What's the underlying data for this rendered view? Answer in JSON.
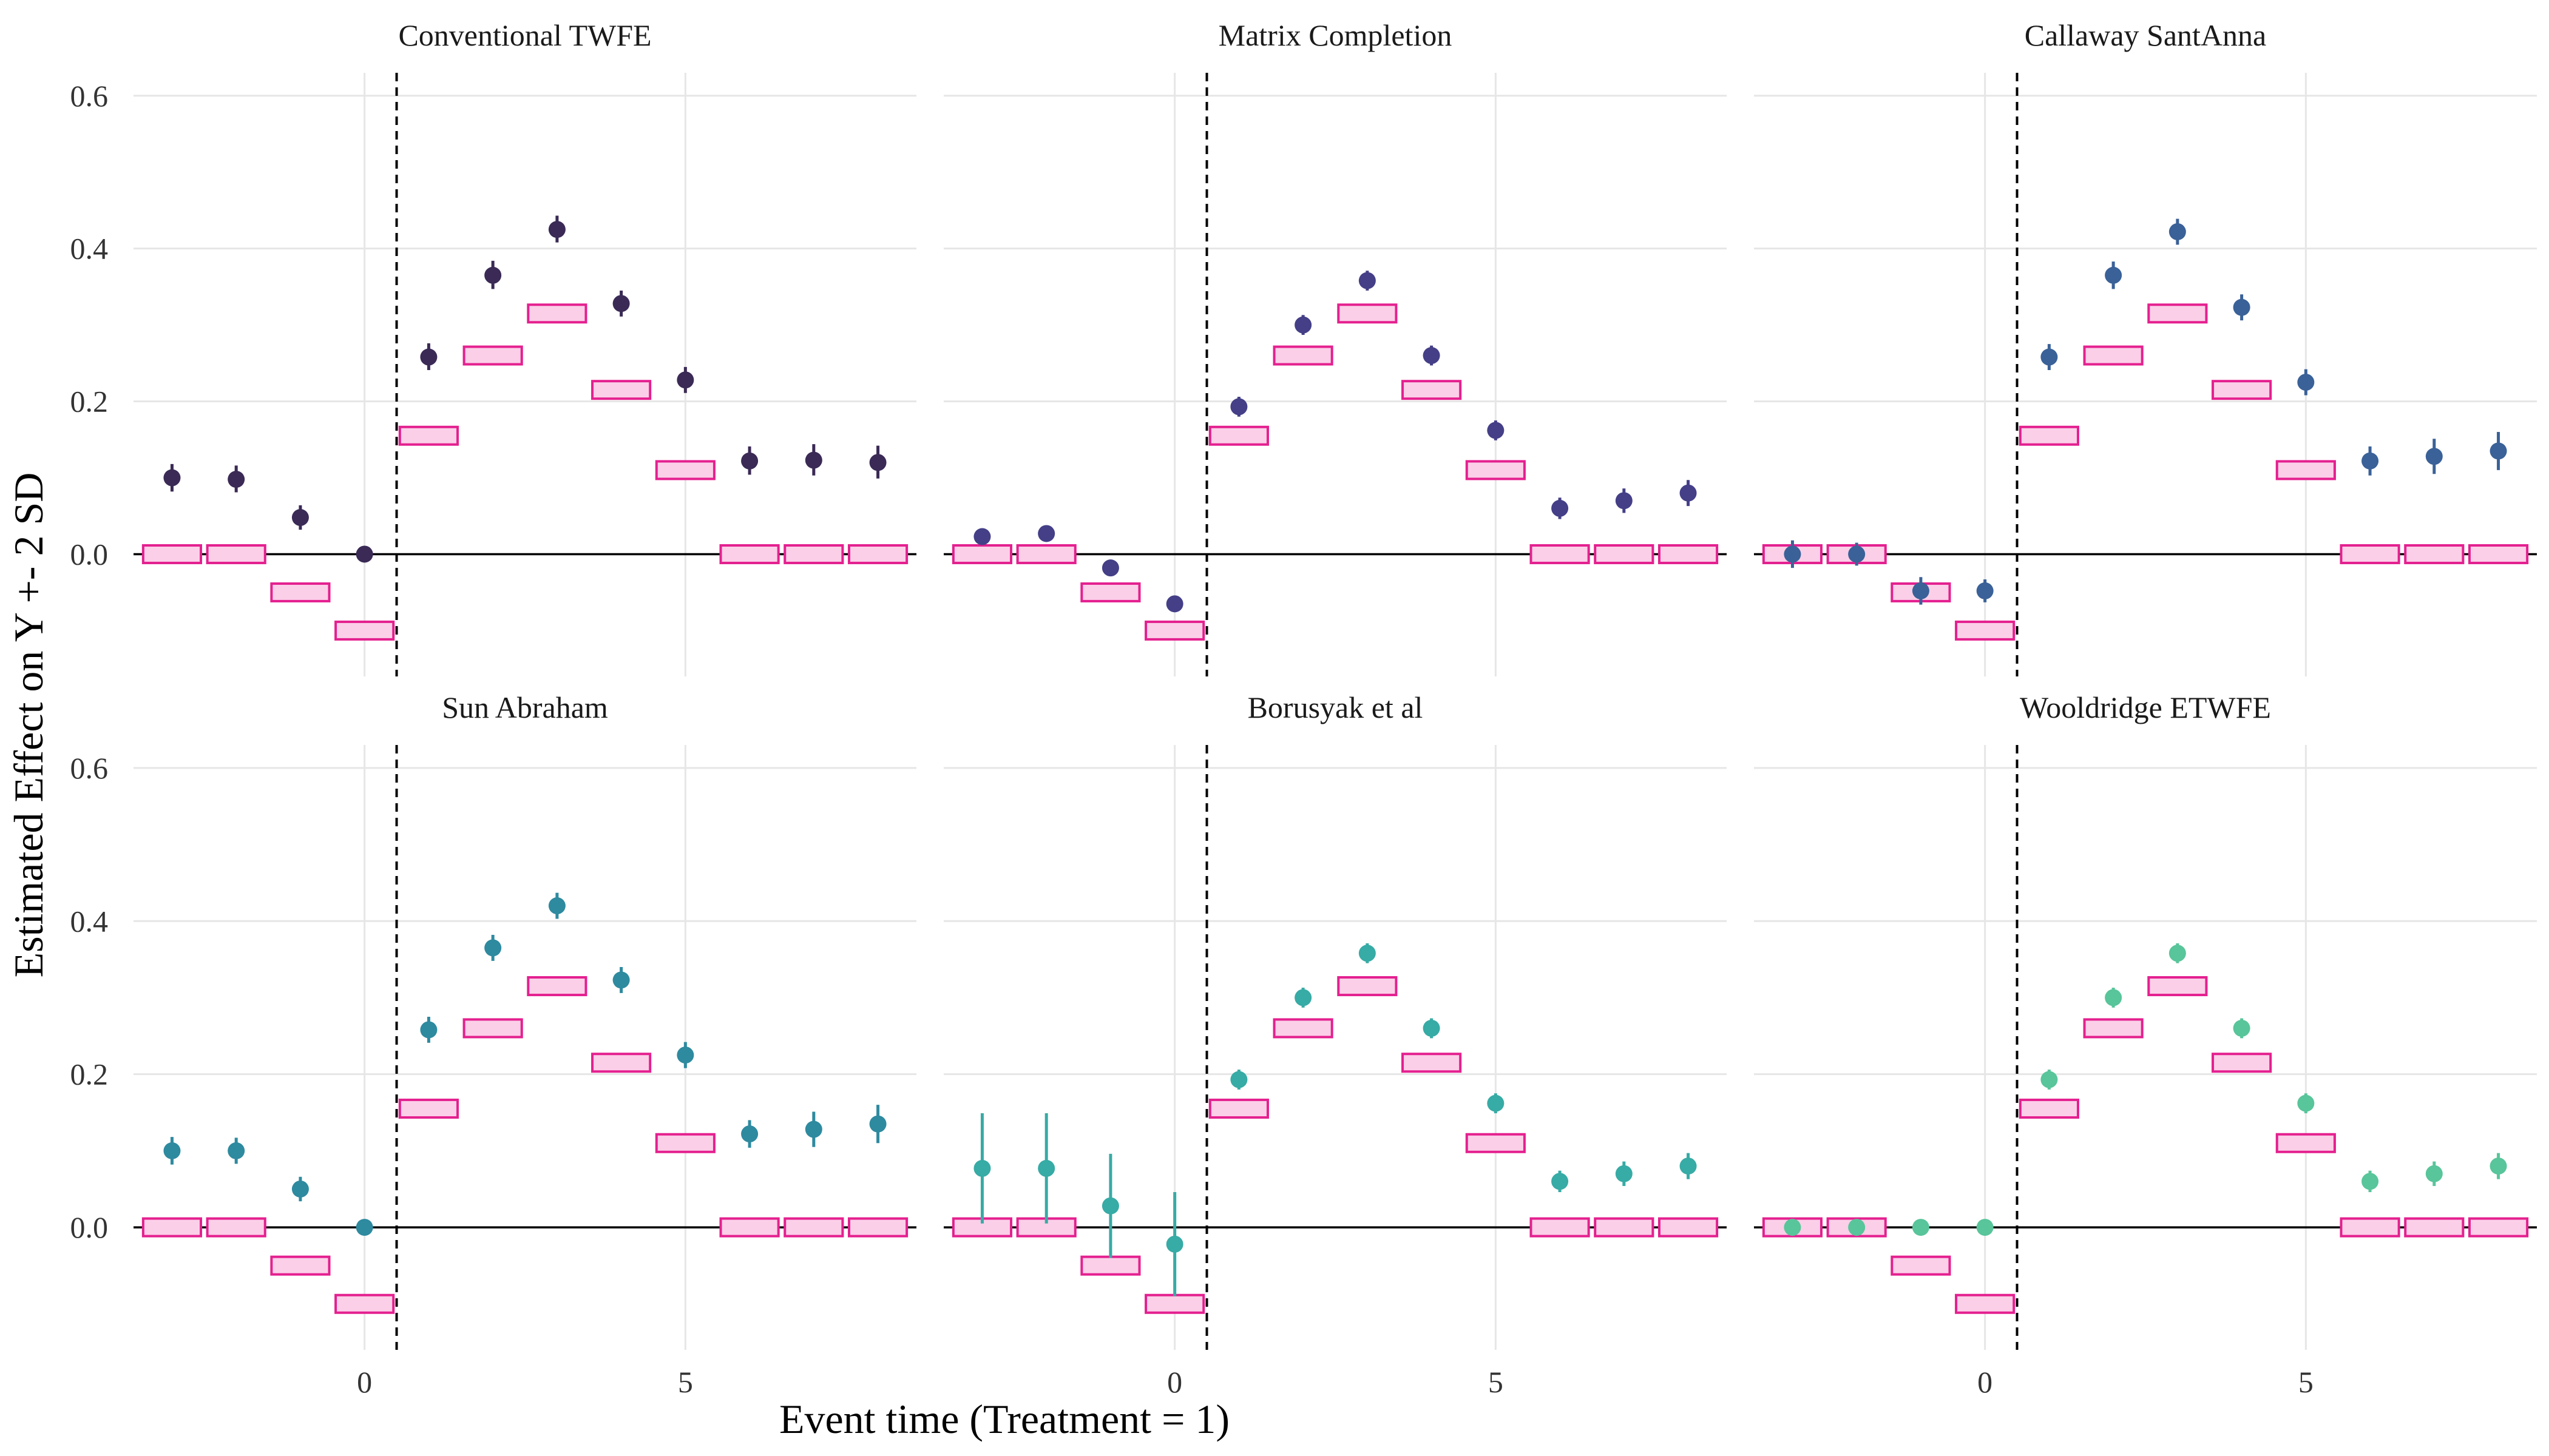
{
  "chart_data": {
    "type": "scatter",
    "xlabel": "Event time (Treatment = 1)",
    "ylabel": "Estimated Effect on Y +- 2 SD",
    "xlim": [
      -3.6,
      8.6
    ],
    "ylim": [
      -0.16,
      0.63
    ],
    "xticks": [
      0,
      5
    ],
    "xtick_labels": [
      "0",
      "5"
    ],
    "yticks": [
      0.0,
      0.2,
      0.4,
      0.6
    ],
    "ytick_labels": [
      "0.0",
      "0.2",
      "0.4",
      "0.6"
    ],
    "treatment_line_x": 0.5,
    "true_effects": {
      "x": [
        -3,
        -2,
        -1,
        0,
        1,
        2,
        3,
        4,
        5,
        6,
        7,
        8
      ],
      "values": [
        0.0,
        0.0,
        -0.05,
        -0.1,
        0.155,
        0.26,
        0.315,
        0.215,
        0.11,
        0.0,
        0.0,
        0.0
      ]
    },
    "panels": [
      {
        "title": "Conventional TWFE",
        "color": "#3a2a55",
        "x": [
          -3,
          -2,
          -1,
          0,
          1,
          2,
          3,
          4,
          5,
          6,
          7,
          8
        ],
        "estimates": [
          0.1,
          0.098,
          0.048,
          0.0,
          0.258,
          0.365,
          0.425,
          0.328,
          0.228,
          0.122,
          0.123,
          0.12
        ],
        "lower": [
          0.082,
          0.081,
          0.032,
          0.0,
          0.241,
          0.347,
          0.408,
          0.311,
          0.211,
          0.104,
          0.103,
          0.099
        ],
        "upper": [
          0.118,
          0.116,
          0.064,
          0.0,
          0.276,
          0.384,
          0.443,
          0.345,
          0.245,
          0.141,
          0.144,
          0.142
        ]
      },
      {
        "title": "Matrix Completion",
        "color": "#443f87",
        "x": [
          -3,
          -2,
          -1,
          0,
          1,
          2,
          3,
          4,
          5,
          6,
          7,
          8
        ],
        "estimates": [
          0.023,
          0.027,
          -0.018,
          -0.065,
          0.193,
          0.3,
          0.358,
          0.26,
          0.162,
          0.06,
          0.07,
          0.08
        ],
        "lower": [
          0.017,
          0.021,
          -0.023,
          -0.07,
          0.18,
          0.287,
          0.345,
          0.247,
          0.149,
          0.046,
          0.054,
          0.063
        ],
        "upper": [
          0.029,
          0.033,
          -0.013,
          -0.06,
          0.206,
          0.313,
          0.371,
          0.273,
          0.175,
          0.074,
          0.086,
          0.097
        ]
      },
      {
        "title": "Callaway SantAnna",
        "color": "#3a6198",
        "x": [
          -3,
          -2,
          -1,
          0,
          1,
          2,
          3,
          4,
          5,
          6,
          7,
          8
        ],
        "estimates": [
          0.0,
          0.0,
          -0.048,
          -0.048,
          0.258,
          0.365,
          0.422,
          0.323,
          0.225,
          0.122,
          0.128,
          0.135
        ],
        "lower": [
          -0.018,
          -0.015,
          -0.066,
          -0.063,
          0.241,
          0.347,
          0.405,
          0.306,
          0.208,
          0.103,
          0.105,
          0.11
        ],
        "upper": [
          0.018,
          0.015,
          -0.03,
          -0.033,
          0.275,
          0.383,
          0.439,
          0.34,
          0.242,
          0.141,
          0.151,
          0.16
        ]
      },
      {
        "title": "Sun Abraham",
        "color": "#2e8a9f",
        "x": [
          -3,
          -2,
          -1,
          0,
          1,
          2,
          3,
          4,
          5,
          6,
          7,
          8
        ],
        "estimates": [
          0.1,
          0.1,
          0.05,
          0.0,
          0.258,
          0.365,
          0.42,
          0.323,
          0.225,
          0.122,
          0.128,
          0.135
        ],
        "lower": [
          0.082,
          0.083,
          0.034,
          0.0,
          0.241,
          0.348,
          0.403,
          0.306,
          0.208,
          0.104,
          0.105,
          0.11
        ],
        "upper": [
          0.118,
          0.117,
          0.066,
          0.0,
          0.275,
          0.382,
          0.437,
          0.34,
          0.242,
          0.14,
          0.151,
          0.16
        ]
      },
      {
        "title": "Borusyak et al",
        "color": "#37aba5",
        "x": [
          -3,
          -2,
          -1,
          0,
          1,
          2,
          3,
          4,
          5,
          6,
          7,
          8
        ],
        "estimates": [
          0.077,
          0.077,
          0.028,
          -0.022,
          0.193,
          0.3,
          0.358,
          0.26,
          0.162,
          0.06,
          0.07,
          0.08
        ],
        "lower": [
          0.005,
          0.005,
          -0.04,
          -0.09,
          0.18,
          0.287,
          0.345,
          0.247,
          0.149,
          0.046,
          0.054,
          0.063
        ],
        "upper": [
          0.149,
          0.149,
          0.096,
          0.046,
          0.206,
          0.313,
          0.371,
          0.273,
          0.175,
          0.074,
          0.086,
          0.097
        ]
      },
      {
        "title": "Wooldridge ETWFE",
        "color": "#58c59a",
        "x": [
          -3,
          -2,
          -1,
          0,
          1,
          2,
          3,
          4,
          5,
          6,
          7,
          8
        ],
        "estimates": [
          0.0,
          0.0,
          0.0,
          0.0,
          0.193,
          0.3,
          0.358,
          0.26,
          0.162,
          0.06,
          0.07,
          0.08
        ],
        "lower": [
          -0.003,
          -0.003,
          -0.003,
          -0.003,
          0.18,
          0.287,
          0.345,
          0.247,
          0.149,
          0.046,
          0.054,
          0.063
        ],
        "upper": [
          0.003,
          0.003,
          0.003,
          0.003,
          0.206,
          0.313,
          0.371,
          0.273,
          0.175,
          0.074,
          0.086,
          0.097
        ]
      }
    ]
  }
}
